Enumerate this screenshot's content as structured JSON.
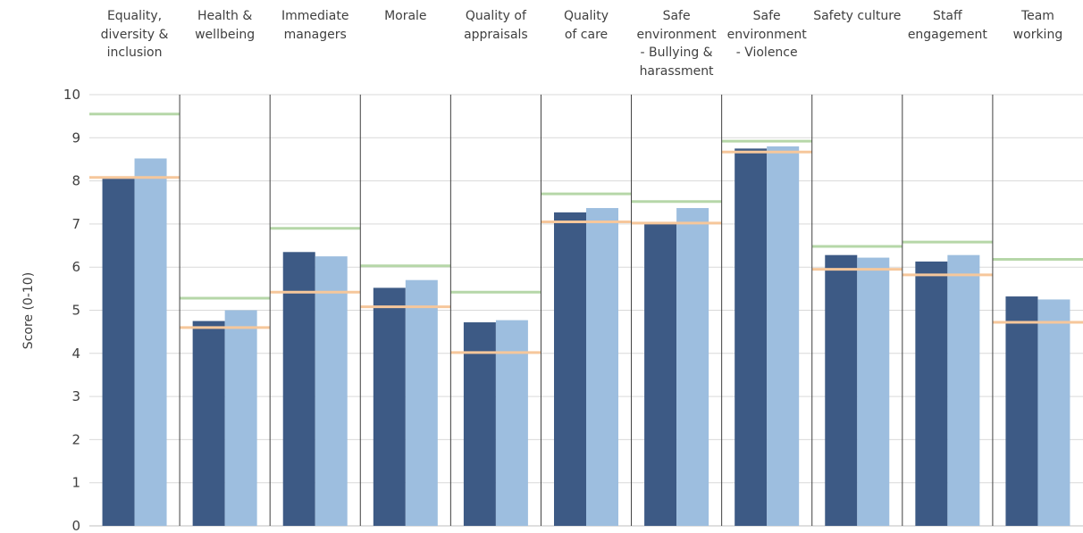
{
  "chart_data": {
    "type": "bar",
    "title": "",
    "xlabel": "",
    "ylabel": "Score (0-10)",
    "ylim": [
      0,
      10
    ],
    "yticks": [
      "0",
      "1",
      "2",
      "3",
      "4",
      "5",
      "6",
      "7",
      "8",
      "9",
      "10"
    ],
    "grid": true,
    "categories": [
      "Equality,\ndiversity &\ninclusion",
      "Health &\nwellbeing",
      "Immediate\nmanagers",
      "Morale",
      "Quality of\nappraisals",
      "Quality\nof care",
      "Safe\nenvironment\n- Bullying &\nharassment",
      "Safe\nenvironment\n- Violence",
      "Safety culture",
      "Staff\nengagement",
      "Team\nworking"
    ],
    "series": [
      {
        "type": "bar",
        "color": "#3d5a85",
        "values": [
          8.05,
          4.75,
          6.35,
          5.52,
          4.72,
          7.27,
          7.02,
          8.75,
          6.28,
          6.13,
          5.32
        ]
      },
      {
        "type": "bar",
        "color": "#9dbedf",
        "values": [
          8.52,
          5.0,
          6.25,
          5.7,
          4.77,
          7.37,
          7.37,
          8.8,
          6.22,
          6.28,
          5.25
        ]
      },
      {
        "type": "marker",
        "color": "#b6d7a8",
        "values": [
          9.55,
          5.28,
          6.9,
          6.03,
          5.42,
          7.7,
          7.52,
          8.92,
          6.48,
          6.58,
          6.18
        ]
      },
      {
        "type": "marker",
        "color": "#f6c79b",
        "values": [
          8.08,
          4.6,
          5.42,
          5.08,
          4.02,
          7.05,
          7.02,
          8.67,
          5.95,
          5.82,
          4.72
        ]
      }
    ]
  }
}
